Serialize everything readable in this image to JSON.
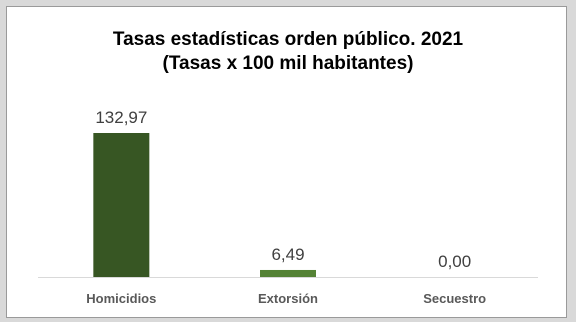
{
  "chart_data": {
    "type": "bar",
    "title": "Tasas estadísticas orden público. 2021",
    "subtitle": "(Tasas x 100 mil habitantes)",
    "categories": [
      "Homicidios",
      "Extorsión",
      "Secuestro"
    ],
    "values": [
      132.97,
      6.49,
      0.0
    ],
    "value_labels": [
      "132,97",
      "6,49",
      "0,00"
    ],
    "ylim": [
      0,
      132.97
    ],
    "grid": false,
    "legend": "none",
    "colors": [
      "#375623",
      "#548235",
      "#548235"
    ],
    "axis_color": "#d9d9d9"
  }
}
